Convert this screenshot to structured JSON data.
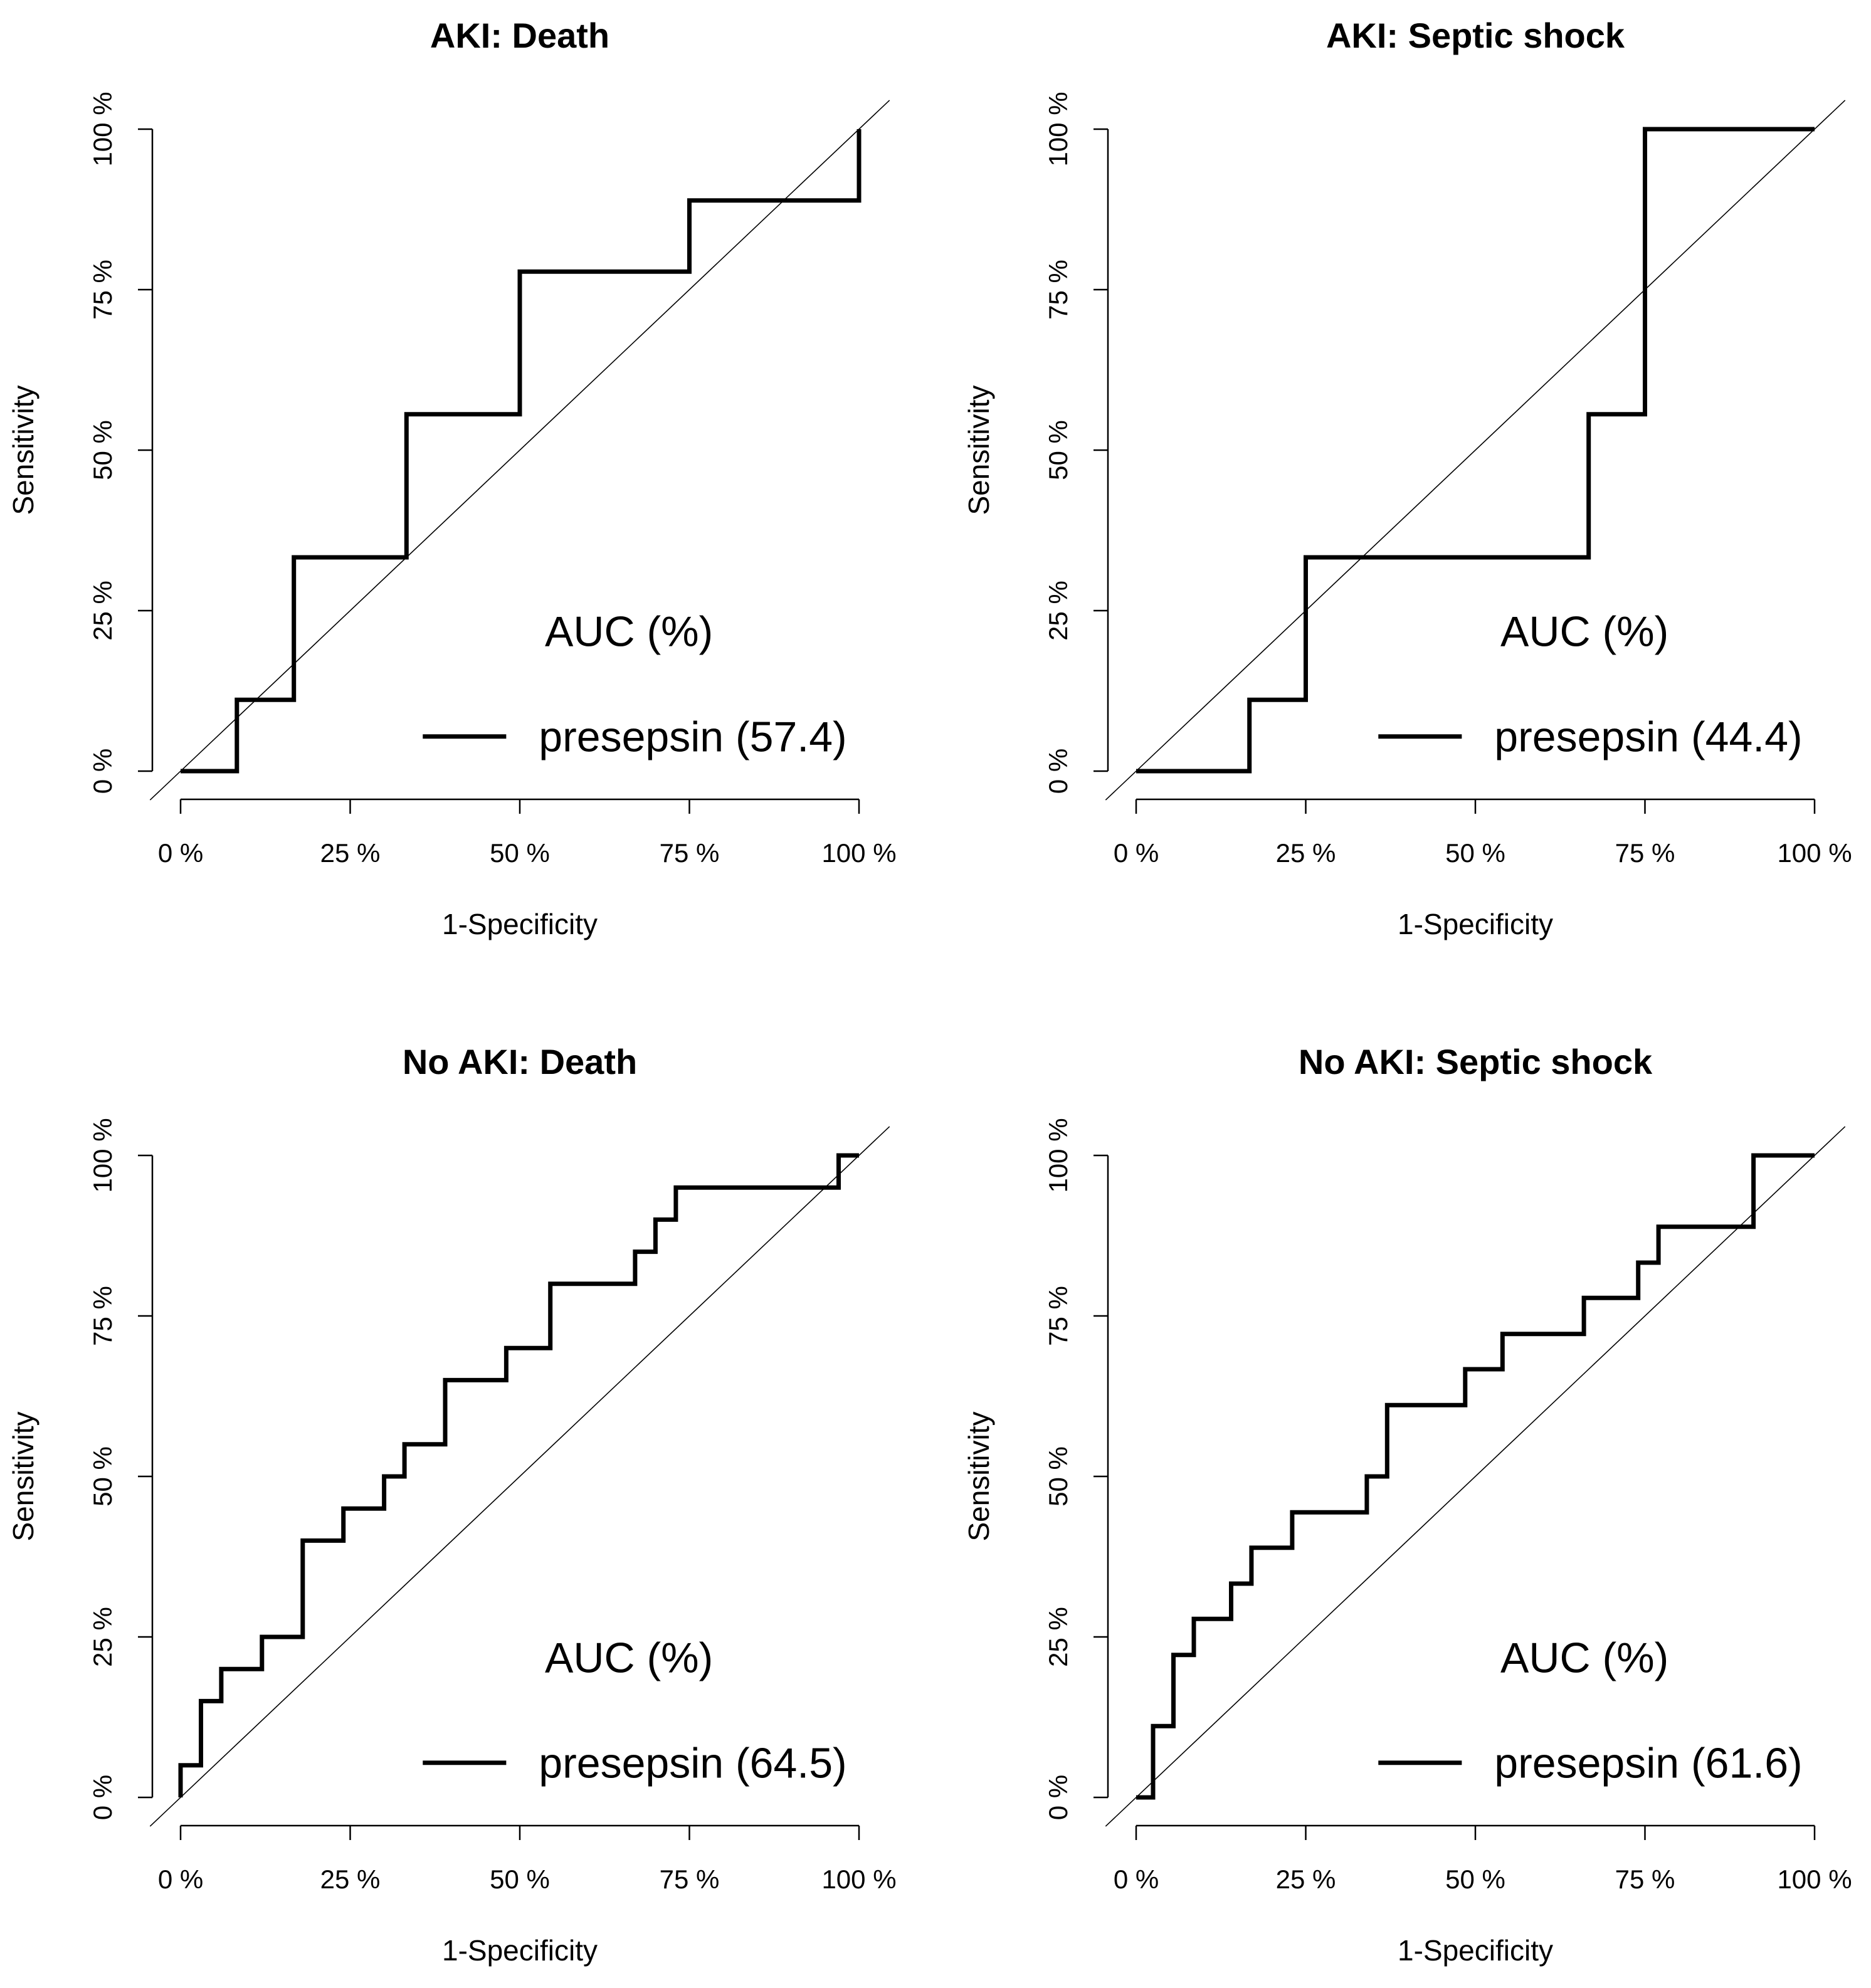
{
  "chart_data": [
    {
      "type": "line",
      "title": "AKI: Death",
      "xlabel": "1-Specificity",
      "ylabel": "Sensitivity",
      "xlim": [
        0,
        1
      ],
      "ylim": [
        0,
        1
      ],
      "x_ticks": [
        "0 %",
        "25 %",
        "50 %",
        "75 %",
        "100 %"
      ],
      "y_ticks": [
        "0 %",
        "25 %",
        "50 %",
        "75 %",
        "100 %"
      ],
      "reference_line": "diagonal",
      "legend": {
        "title": "AUC (%)",
        "entries": [
          "presepsin (57.4)"
        ],
        "placement": "bottom-right"
      },
      "series": [
        {
          "name": "presepsin (57.4)",
          "x": [
            0,
            0.083,
            0.083,
            0.167,
            0.167,
            0.333,
            0.333,
            0.5,
            0.5,
            0.75,
            0.75,
            1.0,
            1.0
          ],
          "y": [
            0,
            0,
            0.111,
            0.111,
            0.333,
            0.333,
            0.556,
            0.556,
            0.778,
            0.778,
            0.889,
            0.889,
            1.0
          ]
        }
      ]
    },
    {
      "type": "line",
      "title": "AKI: Septic shock",
      "xlabel": "1-Specificity",
      "ylabel": "Sensitivity",
      "xlim": [
        0,
        1
      ],
      "ylim": [
        0,
        1
      ],
      "x_ticks": [
        "0 %",
        "25 %",
        "50 %",
        "75 %",
        "100 %"
      ],
      "y_ticks": [
        "0 %",
        "25 %",
        "50 %",
        "75 %",
        "100 %"
      ],
      "reference_line": "diagonal",
      "legend": {
        "title": "AUC (%)",
        "entries": [
          "presepsin (44.4)"
        ],
        "placement": "bottom-right"
      },
      "series": [
        {
          "name": "presepsin (44.4)",
          "x": [
            0,
            0.167,
            0.167,
            0.25,
            0.25,
            0.667,
            0.667,
            0.75,
            0.75,
            1.0
          ],
          "y": [
            0,
            0,
            0.111,
            0.111,
            0.333,
            0.333,
            0.556,
            0.556,
            1.0,
            1.0
          ]
        }
      ]
    },
    {
      "type": "line",
      "title": "No AKI: Death",
      "xlabel": "1-Specificity",
      "ylabel": "Sensitivity",
      "xlim": [
        0,
        1
      ],
      "ylim": [
        0,
        1
      ],
      "x_ticks": [
        "0 %",
        "25 %",
        "50 %",
        "75 %",
        "100 %"
      ],
      "y_ticks": [
        "0 %",
        "25 %",
        "50 %",
        "75 %",
        "100 %"
      ],
      "reference_line": "diagonal",
      "legend": {
        "title": "AUC (%)",
        "entries": [
          "presepsin (64.5)"
        ],
        "placement": "bottom-right"
      },
      "series": [
        {
          "name": "presepsin (64.5)",
          "x": [
            0,
            0,
            0.03,
            0.03,
            0.06,
            0.06,
            0.12,
            0.12,
            0.18,
            0.18,
            0.24,
            0.24,
            0.3,
            0.3,
            0.33,
            0.33,
            0.39,
            0.39,
            0.48,
            0.48,
            0.545,
            0.545,
            0.67,
            0.67,
            0.7,
            0.7,
            0.73,
            0.73,
            0.97,
            0.97,
            1.0
          ],
          "y": [
            0,
            0.05,
            0.05,
            0.15,
            0.15,
            0.2,
            0.2,
            0.25,
            0.25,
            0.4,
            0.4,
            0.45,
            0.45,
            0.5,
            0.5,
            0.55,
            0.55,
            0.65,
            0.65,
            0.7,
            0.7,
            0.8,
            0.8,
            0.85,
            0.85,
            0.9,
            0.9,
            0.95,
            0.95,
            1.0,
            1.0
          ]
        }
      ]
    },
    {
      "type": "line",
      "title": "No AKI: Septic shock",
      "xlabel": "1-Specificity",
      "ylabel": "Sensitivity",
      "xlim": [
        0,
        1
      ],
      "ylim": [
        0,
        1
      ],
      "x_ticks": [
        "0 %",
        "25 %",
        "50 %",
        "75 %",
        "100 %"
      ],
      "y_ticks": [
        "0 %",
        "25 %",
        "50 %",
        "75 %",
        "100 %"
      ],
      "reference_line": "diagonal",
      "legend": {
        "title": "AUC (%)",
        "entries": [
          "presepsin (61.6)"
        ],
        "placement": "bottom-right"
      },
      "series": [
        {
          "name": "presepsin (61.6)",
          "x": [
            0,
            0.025,
            0.025,
            0.055,
            0.055,
            0.085,
            0.085,
            0.14,
            0.14,
            0.17,
            0.17,
            0.23,
            0.23,
            0.34,
            0.34,
            0.37,
            0.37,
            0.485,
            0.485,
            0.54,
            0.54,
            0.66,
            0.66,
            0.74,
            0.74,
            0.77,
            0.77,
            0.91,
            0.91,
            1.0
          ],
          "y": [
            0,
            0,
            0.111,
            0.111,
            0.222,
            0.222,
            0.278,
            0.278,
            0.333,
            0.333,
            0.389,
            0.389,
            0.444,
            0.444,
            0.5,
            0.5,
            0.611,
            0.611,
            0.667,
            0.667,
            0.722,
            0.722,
            0.778,
            0.778,
            0.833,
            0.833,
            0.889,
            0.889,
            1.0,
            1.0
          ]
        }
      ]
    }
  ]
}
